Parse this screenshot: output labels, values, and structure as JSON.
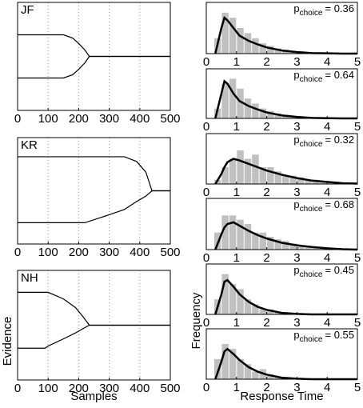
{
  "chart_data": [
    {
      "type": "line",
      "title": "JF",
      "x": [
        0,
        150,
        180,
        200,
        220,
        235,
        500
      ],
      "series": [
        {
          "values": [
            0.4,
            0.4,
            0.34,
            0.24,
            0.12,
            0,
            0
          ]
        },
        {
          "values": [
            -0.4,
            -0.4,
            -0.34,
            -0.24,
            -0.12,
            0,
            0
          ]
        }
      ],
      "xlim": [
        0,
        500
      ],
      "xticks": [
        0,
        100,
        200,
        300,
        400,
        500
      ],
      "ylim": [
        -1,
        1
      ],
      "grid": true,
      "color": "#000000"
    },
    {
      "type": "histogram",
      "annotation": {
        "text": "p",
        "subscript": "choice",
        "suffix": "= 0.36"
      },
      "bins": [
        0.25,
        0.5,
        0.75,
        1,
        1.25,
        1.5,
        1.75,
        2,
        2.25,
        2.5,
        2.75,
        3,
        3.25,
        3.5,
        3.75,
        4,
        4.25,
        4.5,
        4.75
      ],
      "values": [
        3,
        8,
        7,
        5,
        4,
        3,
        2,
        1.5,
        1,
        0.8,
        0.5,
        0.3,
        0.2,
        0.1,
        0,
        0,
        0,
        0
      ],
      "density": {
        "x": [
          0.3,
          0.5,
          0.6,
          0.7,
          0.9,
          1.1,
          1.4,
          1.7,
          2.0,
          2.5,
          3.0,
          3.5,
          4.0,
          4.5,
          5.0
        ],
        "values": [
          0,
          5,
          7,
          6.5,
          5,
          3.5,
          2.5,
          1.8,
          1.2,
          0.6,
          0.3,
          0.1,
          0.05,
          0,
          0
        ]
      },
      "xlim": [
        0,
        5
      ],
      "xticks": [
        0,
        1,
        2,
        3,
        4,
        5
      ],
      "ylim": [
        0,
        10
      ],
      "bar_color": "#c0c0c0",
      "line_color": "#000000"
    },
    {
      "type": "histogram",
      "annotation": {
        "text": "p",
        "subscript": "choice",
        "suffix": "= 0.64"
      },
      "bins": [
        0.25,
        0.5,
        0.75,
        1,
        1.25,
        1.5,
        1.75,
        2,
        2.25,
        2.5,
        2.75,
        3,
        3.25,
        3.5,
        3.75,
        4,
        4.25,
        4.5,
        4.75
      ],
      "values": [
        2,
        7,
        8,
        6,
        4,
        3,
        2,
        1.5,
        1,
        0.7,
        0.5,
        0.3,
        0.2,
        0.1,
        0,
        0,
        0,
        0
      ],
      "density": {
        "x": [
          0.3,
          0.5,
          0.6,
          0.7,
          0.9,
          1.1,
          1.4,
          1.7,
          2.0,
          2.5,
          3.0,
          3.5,
          4.0,
          4.5,
          5.0
        ],
        "values": [
          0,
          5,
          7.5,
          7,
          5,
          3.5,
          2.5,
          1.8,
          1.2,
          0.6,
          0.3,
          0.1,
          0.05,
          0,
          0
        ]
      },
      "xlim": [
        0,
        5
      ],
      "xticks": [
        0,
        1,
        2,
        3,
        4,
        5
      ],
      "ylim": [
        0,
        10
      ],
      "bar_color": "#c0c0c0",
      "line_color": "#000000"
    },
    {
      "type": "line",
      "title": "KR",
      "x": [
        0,
        220,
        300,
        350,
        390,
        420,
        440,
        500
      ],
      "series": [
        {
          "values": [
            0.64,
            0.64,
            0.64,
            0.64,
            0.55,
            0.35,
            0,
            0
          ]
        },
        {
          "values": [
            -0.6,
            -0.6,
            -0.45,
            -0.35,
            -0.2,
            -0.1,
            0,
            0
          ]
        }
      ],
      "xlim": [
        0,
        500
      ],
      "xticks": [
        0,
        100,
        200,
        300,
        400,
        500
      ],
      "ylim": [
        -1,
        1
      ],
      "grid": true,
      "color": "#000000"
    },
    {
      "type": "histogram",
      "annotation": {
        "text": "p",
        "subscript": "choice",
        "suffix": "= 0.32"
      },
      "bins": [
        0.25,
        0.5,
        0.75,
        1,
        1.25,
        1.5,
        1.75,
        2,
        2.25,
        2.5,
        2.75,
        3,
        3.25,
        3.5,
        3.75,
        4,
        4.25,
        4.5,
        4.75
      ],
      "values": [
        0.5,
        2,
        3,
        4,
        3,
        3.5,
        2,
        2,
        1.5,
        1,
        1,
        0.8,
        0.5,
        0.5,
        0.3,
        0.2,
        0.1,
        0.1
      ],
      "density": {
        "x": [
          0.3,
          0.5,
          0.6,
          0.7,
          0.9,
          1.1,
          1.4,
          1.7,
          2.0,
          2.5,
          3.0,
          3.5,
          4.0,
          4.5,
          5.0
        ],
        "values": [
          0,
          1.2,
          2,
          2.6,
          3,
          2.8,
          2.4,
          2,
          1.6,
          1.1,
          0.7,
          0.4,
          0.25,
          0.1,
          0.05
        ]
      },
      "xlim": [
        0,
        5
      ],
      "xticks": [
        0,
        1,
        2,
        3,
        4,
        5
      ],
      "ylim": [
        0,
        6
      ],
      "bar_color": "#c0c0c0",
      "line_color": "#000000"
    },
    {
      "type": "histogram",
      "annotation": {
        "text": "p",
        "subscript": "choice",
        "suffix": "= 0.68"
      },
      "bins": [
        0.25,
        0.5,
        0.75,
        1,
        1.25,
        1.5,
        1.75,
        2,
        2.25,
        2.5,
        2.75,
        3,
        3.25,
        3.5,
        3.75,
        4,
        4.25,
        4.5,
        4.75
      ],
      "values": [
        2,
        4,
        4,
        3.5,
        3,
        2,
        2,
        1.5,
        1.2,
        1,
        0.7,
        0.5,
        0.4,
        0.3,
        0.2,
        0.1,
        0.1,
        0
      ],
      "density": {
        "x": [
          0.3,
          0.5,
          0.6,
          0.7,
          0.9,
          1.1,
          1.4,
          1.7,
          2.0,
          2.5,
          3.0,
          3.5,
          4.0,
          4.5,
          5.0
        ],
        "values": [
          0,
          1.8,
          2.6,
          3,
          3.2,
          2.8,
          2.2,
          1.7,
          1.3,
          0.8,
          0.5,
          0.3,
          0.15,
          0.05,
          0
        ]
      },
      "xlim": [
        0,
        5
      ],
      "xticks": [
        0,
        1,
        2,
        3,
        4,
        5
      ],
      "ylim": [
        0,
        6
      ],
      "bar_color": "#c0c0c0",
      "line_color": "#000000"
    },
    {
      "type": "line",
      "title": "NH",
      "x": [
        0,
        90,
        100,
        150,
        190,
        215,
        235,
        500
      ],
      "series": [
        {
          "values": [
            0.6,
            0.6,
            0.6,
            0.48,
            0.32,
            0.15,
            0,
            0
          ]
        },
        {
          "values": [
            -0.42,
            -0.42,
            -0.38,
            -0.25,
            -0.14,
            -0.06,
            0,
            0
          ]
        }
      ],
      "xlim": [
        0,
        500
      ],
      "xticks": [
        0,
        100,
        200,
        300,
        400,
        500
      ],
      "ylim": [
        -1,
        1
      ],
      "grid": true,
      "color": "#000000",
      "xlabel": "Samples",
      "ylabel": "Evidence"
    },
    {
      "type": "histogram",
      "annotation": {
        "text": "p",
        "subscript": "choice",
        "suffix": "= 0.45"
      },
      "bins": [
        0.25,
        0.5,
        0.75,
        1,
        1.25,
        1.5,
        1.75,
        2,
        2.25,
        2.5,
        2.75,
        3,
        3.25,
        3.5,
        3.75,
        4,
        4.25,
        4.5,
        4.75
      ],
      "values": [
        3,
        8,
        6,
        5,
        3,
        2,
        1,
        1,
        0.5,
        0.3,
        0.2,
        0,
        0,
        0,
        0,
        0,
        0,
        0
      ],
      "density": {
        "x": [
          0.3,
          0.5,
          0.6,
          0.7,
          0.9,
          1.1,
          1.4,
          1.7,
          2.0,
          2.5,
          3.0,
          3.5,
          4.0,
          4.5,
          5.0
        ],
        "values": [
          0,
          4,
          6.5,
          6.8,
          5.5,
          4,
          2.5,
          1.5,
          0.9,
          0.3,
          0.1,
          0,
          0,
          0,
          0
        ]
      },
      "xlim": [
        0,
        5
      ],
      "xticks": [
        0,
        1,
        2,
        3,
        4,
        5
      ],
      "ylim": [
        0,
        10
      ],
      "bar_color": "#c0c0c0",
      "line_color": "#000000"
    },
    {
      "type": "histogram",
      "annotation": {
        "text": "p",
        "subscript": "choice",
        "suffix": "= 0.55"
      },
      "bins": [
        0.25,
        0.5,
        0.75,
        1,
        1.25,
        1.5,
        1.75,
        2,
        2.25,
        2.5,
        2.75,
        3,
        3.25,
        3.5,
        3.75,
        4,
        4.25,
        4.5,
        4.75
      ],
      "values": [
        4,
        7,
        6,
        4,
        3,
        1.5,
        2,
        1,
        0.5,
        0.3,
        0.2,
        0,
        0,
        0,
        0,
        0,
        0,
        0
      ],
      "density": {
        "x": [
          0.3,
          0.5,
          0.6,
          0.7,
          0.9,
          1.1,
          1.4,
          1.7,
          2.0,
          2.5,
          3.0,
          3.5,
          4.0,
          4.5,
          5.0
        ],
        "values": [
          0,
          3.5,
          5.5,
          6,
          5,
          3.8,
          2.4,
          1.5,
          0.9,
          0.3,
          0.1,
          0,
          0,
          0,
          0
        ]
      },
      "xlim": [
        0,
        5
      ],
      "xticks": [
        0,
        1,
        2,
        3,
        4,
        5
      ],
      "ylim": [
        0,
        10
      ],
      "bar_color": "#c0c0c0",
      "line_color": "#000000",
      "xlabel": "Response Time",
      "ylabel": "Frequency"
    }
  ]
}
